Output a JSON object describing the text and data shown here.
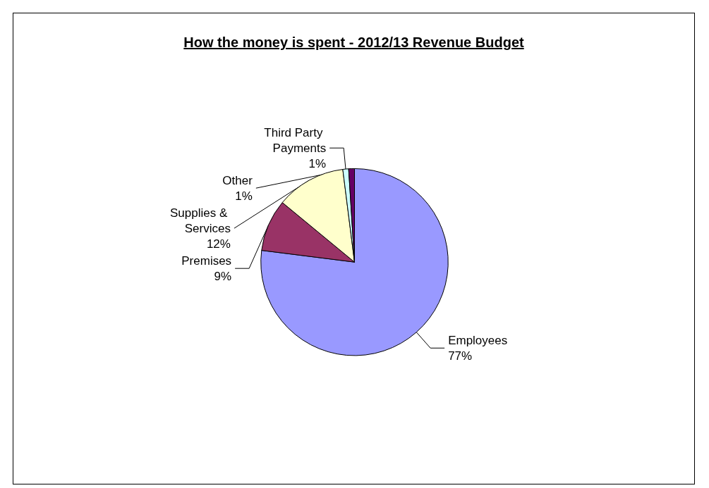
{
  "chart_data": {
    "type": "pie",
    "title": "How the money is spent - 2012/13 Revenue Budget",
    "categories": [
      "Employees",
      "Premises",
      "Supplies & Services",
      "Third Party Payments",
      "Other"
    ],
    "values": [
      77,
      9,
      12,
      1,
      1
    ],
    "value_labels": [
      "77%",
      "9%",
      "12%",
      "1%",
      "1%"
    ],
    "colors": [
      "#9999ff",
      "#993366",
      "#ffffcc",
      "#ccffff",
      "#660066"
    ]
  }
}
